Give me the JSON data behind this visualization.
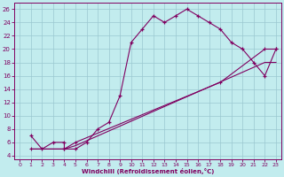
{
  "xlabel": "Windchill (Refroidissement éolien,°C)",
  "bg_color": "#c2ecee",
  "line_color": "#800060",
  "grid_color": "#9ac8d0",
  "xlim": [
    -0.5,
    23.5
  ],
  "ylim": [
    3.5,
    27
  ],
  "xticks": [
    0,
    1,
    2,
    3,
    4,
    5,
    6,
    7,
    8,
    9,
    10,
    11,
    12,
    13,
    14,
    15,
    16,
    17,
    18,
    19,
    20,
    21,
    22,
    23
  ],
  "yticks": [
    4,
    6,
    8,
    10,
    12,
    14,
    16,
    18,
    20,
    22,
    24,
    26
  ],
  "line1_x": [
    1,
    2,
    3,
    4,
    4,
    5,
    6,
    7,
    8,
    9,
    10,
    11,
    12,
    13,
    14,
    15,
    16,
    17,
    18,
    19,
    20,
    21,
    22,
    23
  ],
  "line1_y": [
    7,
    5,
    6,
    6,
    5,
    5,
    6,
    8,
    9,
    13,
    21,
    23,
    25,
    24,
    25,
    26,
    25,
    24,
    23,
    21,
    20,
    18,
    16,
    20
  ],
  "line2_x": [
    1,
    4,
    5,
    22,
    23
  ],
  "line2_y": [
    5,
    5,
    5.5,
    18,
    18
  ],
  "line3_x": [
    1,
    4,
    5,
    18,
    22,
    23
  ],
  "line3_y": [
    5,
    5,
    6,
    15,
    20,
    20
  ]
}
